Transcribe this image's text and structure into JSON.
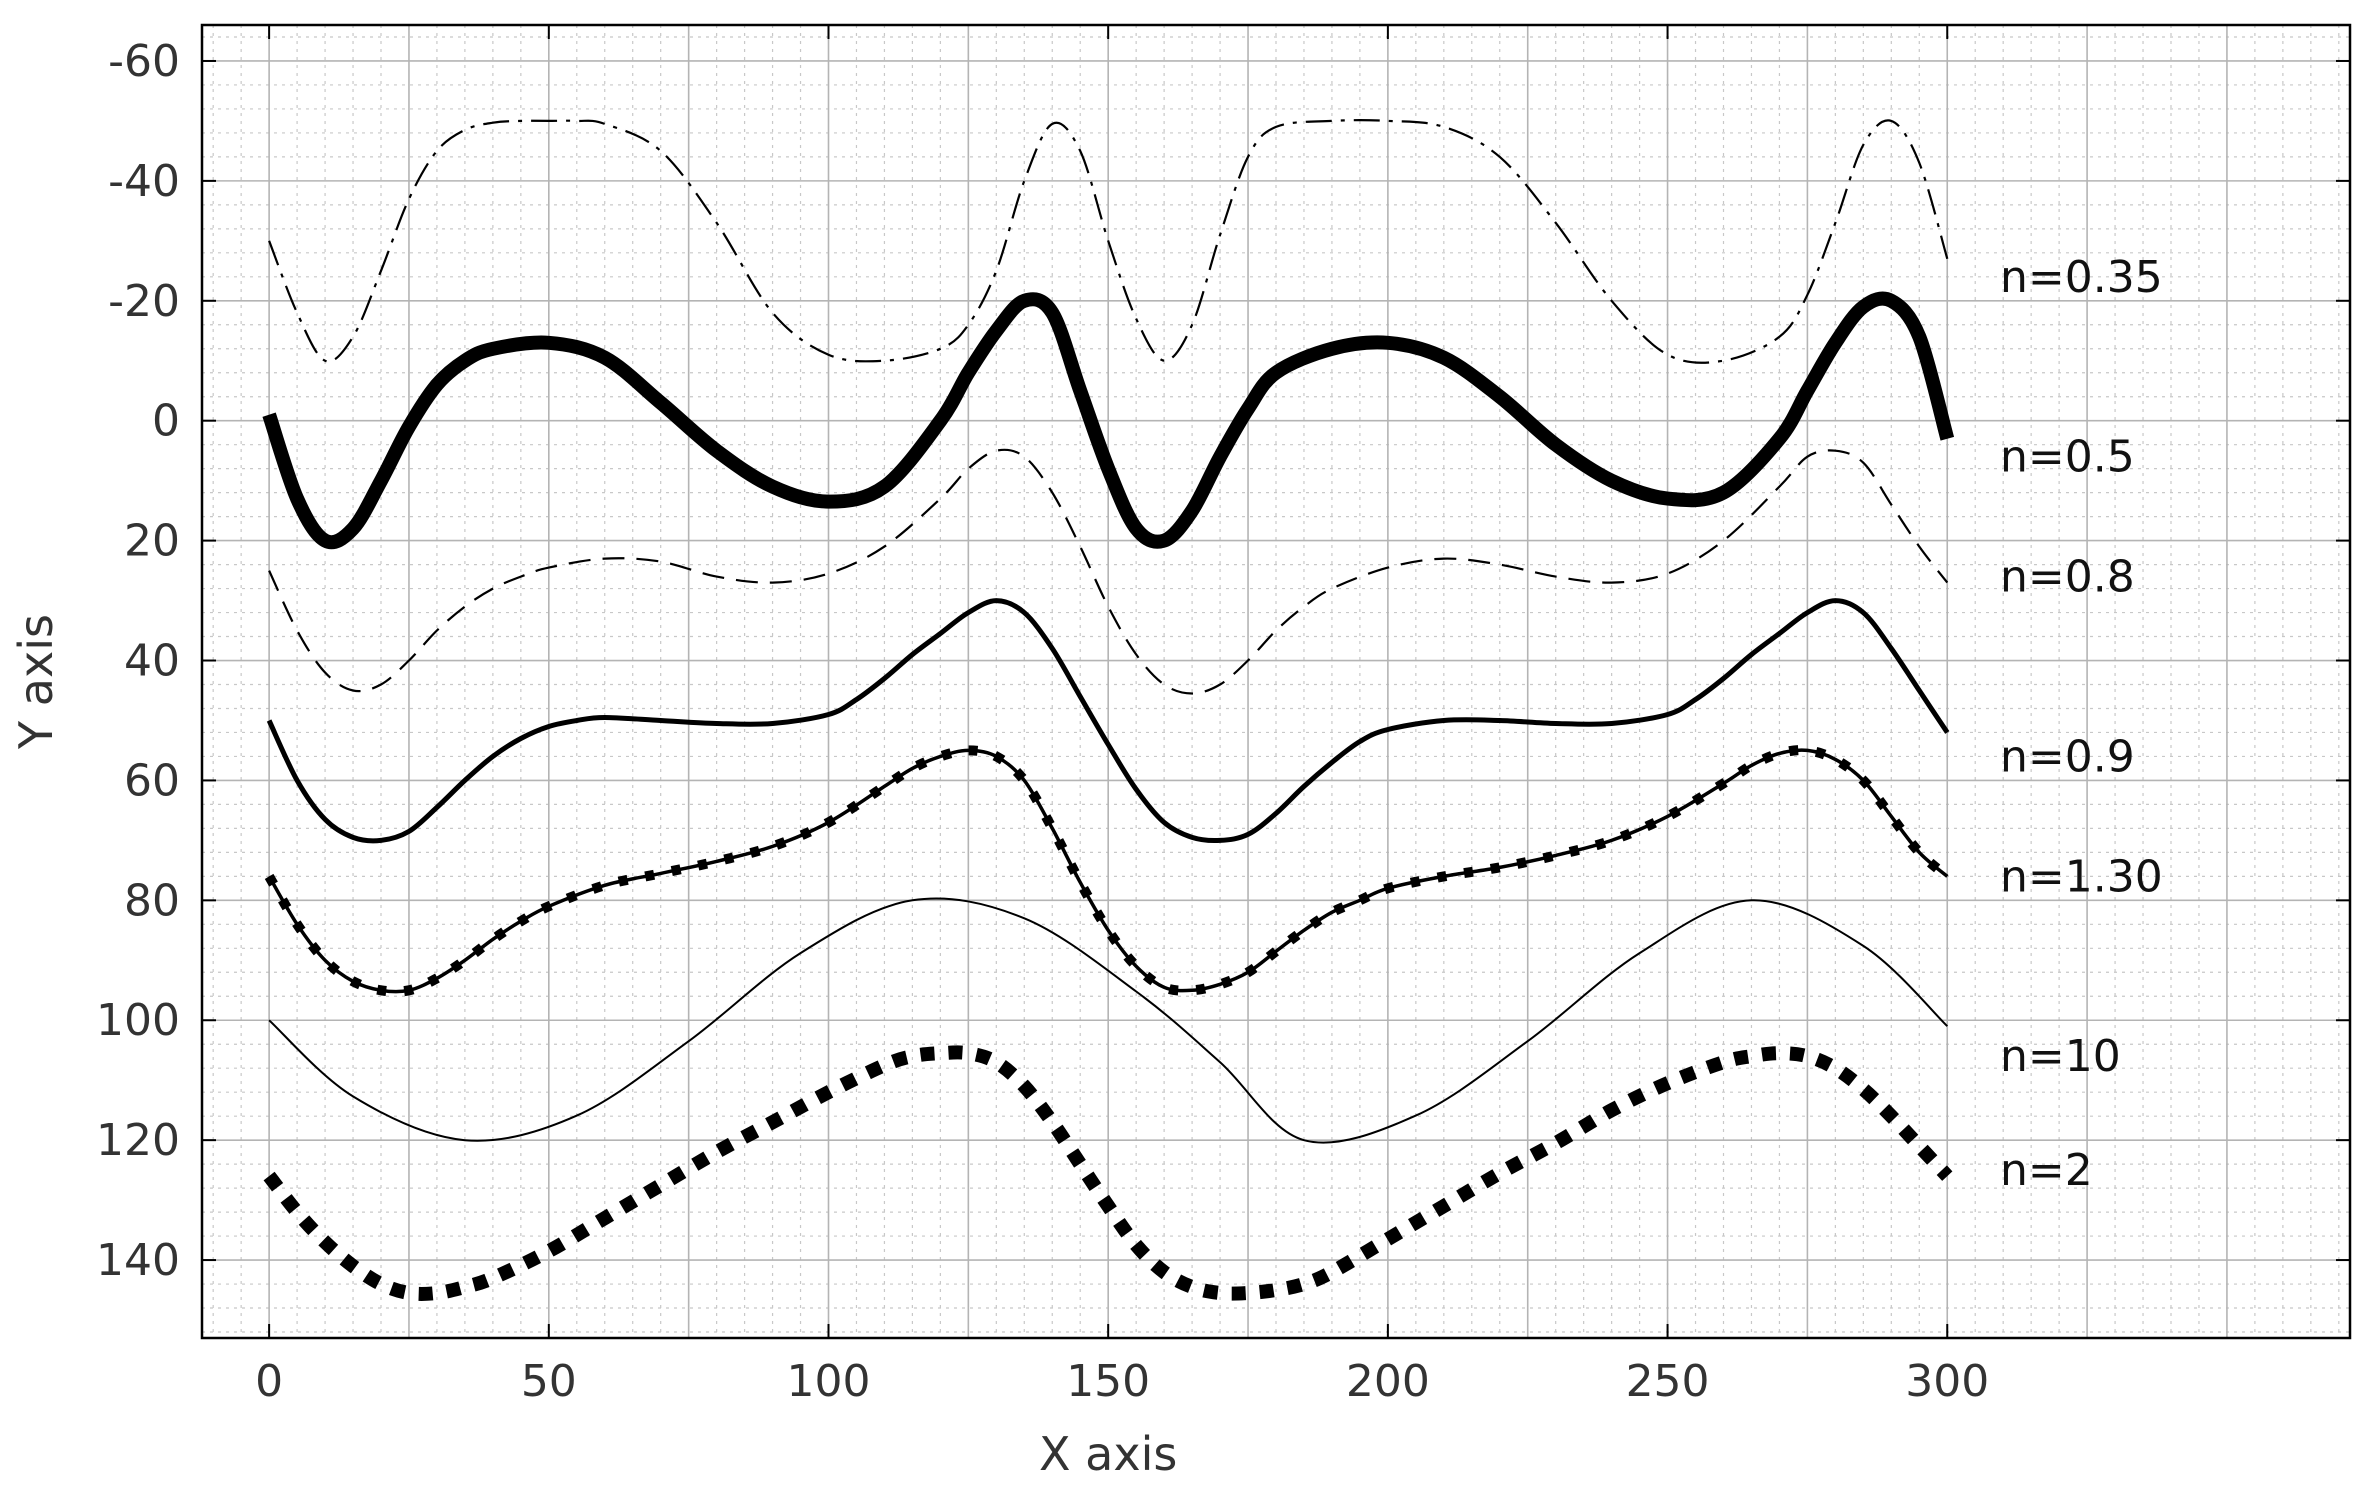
{
  "chart_data": {
    "type": "line",
    "title": "",
    "xlabel": "X axis",
    "ylabel": "Y axis",
    "xlim": [
      -12,
      372
    ],
    "ylim": [
      -66,
      153
    ],
    "y_inverted": true,
    "grid": true,
    "minor_grid": true,
    "xticks": [
      0,
      50,
      100,
      150,
      200,
      250,
      300
    ],
    "yticks": [
      -60,
      -40,
      -20,
      0,
      20,
      40,
      60,
      80,
      100,
      120,
      140
    ],
    "xtick_labels": [
      "0",
      "50",
      "100",
      "150",
      "200",
      "250",
      "300"
    ],
    "ytick_labels": [
      "-60",
      "-40",
      "-20",
      "0",
      "20",
      "40",
      "60",
      "80",
      "100",
      "120",
      "140"
    ],
    "series": [
      {
        "name": "n=0.35",
        "style": "dashdot",
        "color": "#000000",
        "x": [
          0,
          5,
          10,
          15,
          20,
          25,
          30,
          35,
          40,
          45,
          50,
          55,
          60,
          70,
          80,
          90,
          100,
          110,
          120,
          125,
          130,
          135,
          140,
          145,
          150,
          155,
          160,
          165,
          170,
          175,
          180,
          190,
          200,
          210,
          220,
          230,
          240,
          250,
          260,
          270,
          275,
          280,
          285,
          290,
          295,
          300
        ],
        "y": [
          -30,
          -18,
          -10,
          -14,
          -25,
          -37,
          -45,
          -48.5,
          -49.7,
          -50,
          -50,
          -50,
          -49.5,
          -45,
          -33,
          -18,
          -11,
          -10,
          -12,
          -16,
          -25,
          -40,
          -49.5,
          -45,
          -30,
          -17,
          -10,
          -16,
          -31,
          -44,
          -49,
          -50,
          -50,
          -49,
          -44,
          -33,
          -20,
          -11,
          -10,
          -14,
          -21,
          -33,
          -46,
          -50,
          -43,
          -27
        ]
      },
      {
        "name": "n=0.5",
        "style": "solid",
        "width": "heavy",
        "color": "#000000",
        "x": [
          0,
          5,
          10,
          15,
          20,
          25,
          30,
          35,
          40,
          50,
          60,
          70,
          80,
          90,
          100,
          110,
          120,
          125,
          130,
          135,
          140,
          145,
          150,
          155,
          160,
          165,
          170,
          175,
          180,
          190,
          200,
          210,
          220,
          230,
          240,
          250,
          260,
          270,
          275,
          280,
          285,
          290,
          295,
          300
        ],
        "y": [
          -1,
          13,
          20,
          18,
          10,
          1,
          -6,
          -10,
          -12,
          -13,
          -10.5,
          -3,
          5,
          11,
          13.5,
          11,
          0,
          -8,
          -15,
          -20,
          -18,
          -5,
          8,
          18,
          20,
          15,
          6,
          -2,
          -8,
          -12,
          -13,
          -10.5,
          -4,
          4,
          10,
          13,
          12,
          3,
          -5,
          -13,
          -19,
          -20,
          -14,
          3
        ]
      },
      {
        "name": "n=0.8",
        "style": "dashed",
        "color": "#000000",
        "x": [
          0,
          5,
          10,
          15,
          20,
          25,
          30,
          35,
          40,
          45,
          50,
          60,
          70,
          80,
          90,
          100,
          110,
          120,
          125,
          130,
          135,
          140,
          145,
          150,
          155,
          160,
          165,
          170,
          175,
          180,
          185,
          190,
          200,
          210,
          220,
          230,
          240,
          250,
          260,
          270,
          275,
          280,
          285,
          290,
          295,
          300
        ],
        "y": [
          25,
          35,
          42,
          45,
          44,
          40,
          35,
          31,
          28,
          26,
          24.5,
          23,
          23.5,
          26,
          27,
          25.5,
          21,
          13,
          8,
          5,
          6,
          12,
          21,
          31,
          39,
          44,
          45.5,
          44,
          40,
          35,
          31,
          28,
          24.5,
          23,
          24,
          26,
          27,
          25.5,
          20,
          11,
          6,
          5,
          7,
          14,
          21,
          27
        ]
      },
      {
        "name": "n=0.9",
        "style": "solid",
        "width": "medium",
        "color": "#000000",
        "x": [
          0,
          5,
          10,
          15,
          20,
          25,
          30,
          35,
          40,
          45,
          50,
          55,
          60,
          70,
          80,
          90,
          100,
          105,
          110,
          115,
          120,
          125,
          130,
          135,
          140,
          145,
          150,
          155,
          160,
          165,
          170,
          175,
          180,
          185,
          190,
          195,
          200,
          210,
          220,
          230,
          240,
          250,
          255,
          260,
          265,
          270,
          275,
          280,
          285,
          290,
          295,
          300
        ],
        "y": [
          50,
          60,
          66.5,
          69.5,
          70,
          68.5,
          64.5,
          60,
          56,
          53,
          51,
          50,
          49.5,
          50,
          50.5,
          50.5,
          49,
          46.5,
          43,
          39,
          35.5,
          32,
          30,
          32,
          38,
          46,
          54,
          61.5,
          67,
          69.5,
          70,
          69,
          65.5,
          61,
          57,
          53.5,
          51.5,
          50,
          50,
          50.5,
          50.5,
          49,
          46.5,
          43,
          39,
          35.5,
          32,
          30,
          32,
          38,
          45,
          52
        ]
      },
      {
        "name": "n=1.30",
        "style": "solid-with-square-markers",
        "width": "medium",
        "color": "#000000",
        "x": [
          0,
          5,
          10,
          15,
          20,
          25,
          30,
          35,
          40,
          45,
          50,
          60,
          70,
          80,
          90,
          100,
          110,
          115,
          120,
          125,
          130,
          135,
          140,
          145,
          150,
          155,
          160,
          165,
          170,
          175,
          180,
          185,
          190,
          195,
          200,
          210,
          220,
          230,
          240,
          250,
          260,
          265,
          270,
          275,
          280,
          285,
          290,
          295,
          300
        ],
        "y": [
          76,
          84,
          90,
          93.5,
          95,
          95,
          93,
          90,
          86.5,
          83.5,
          81,
          77.5,
          75.5,
          73.5,
          71,
          67,
          61,
          58,
          56,
          55,
          56,
          60,
          68,
          77,
          85,
          91,
          94.5,
          95,
          94,
          92,
          88.5,
          85,
          82,
          80,
          78,
          76,
          74.5,
          72.5,
          70,
          66,
          60.5,
          57.5,
          55.5,
          55,
          56.5,
          60,
          66,
          72,
          76
        ]
      },
      {
        "name": "n=10",
        "style": "solid",
        "width": "thin",
        "color": "#000000",
        "x": [
          0,
          15,
          35,
          55,
          75,
          95,
          115,
          135,
          155,
          170,
          185,
          205,
          225,
          245,
          265,
          285,
          300
        ],
        "y": [
          100,
          112.7,
          120,
          115.9,
          103.5,
          88.8,
          80,
          83,
          95.2,
          107,
          120,
          115.9,
          103.5,
          88.8,
          80,
          87.6,
          101
        ]
      },
      {
        "name": "n=2",
        "style": "square-dotted",
        "width": "heavy",
        "color": "#000000",
        "x": [
          0,
          5,
          10,
          15,
          20,
          25,
          30,
          35,
          40,
          50,
          60,
          70,
          80,
          90,
          100,
          110,
          115,
          120,
          125,
          130,
          135,
          140,
          145,
          150,
          155,
          160,
          165,
          170,
          175,
          180,
          185,
          190,
          200,
          210,
          220,
          230,
          240,
          250,
          260,
          265,
          270,
          275,
          280,
          285,
          290,
          295,
          300
        ],
        "y": [
          126,
          132,
          137,
          141,
          144,
          145.5,
          145.5,
          144.5,
          143,
          138.5,
          133,
          127.5,
          122,
          117,
          112,
          107.5,
          106,
          105.5,
          105.5,
          107,
          111,
          117,
          124,
          131,
          137.5,
          142,
          144.5,
          145.5,
          145.5,
          145,
          144,
          142,
          136.5,
          131,
          125.5,
          120.5,
          115,
          110.5,
          107,
          106,
          105.5,
          106,
          108,
          111.5,
          116,
          121,
          126
        ]
      }
    ],
    "label_positions_note": "series names are printed at the right side of the plot area"
  }
}
